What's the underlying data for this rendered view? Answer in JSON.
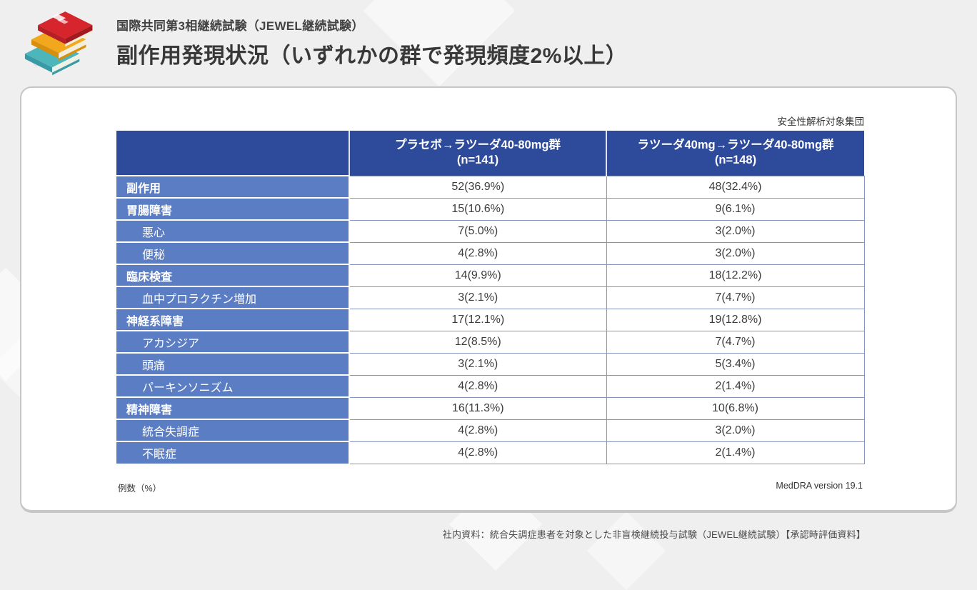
{
  "colors": {
    "page_bg": "#efefef",
    "card_border": "#c6c6c6",
    "header_bg": "#2e4a9b",
    "row_label_bg": "#5b7dc3",
    "data_border": "#8593bd",
    "logo_red": "#d6252c",
    "logo_yellow": "#f2a71c",
    "logo_teal": "#4db6ba"
  },
  "header": {
    "subtitle": "国際共同第3相継続試験（JEWEL継続試験）",
    "title": "副作用発現状況（いずれかの群で発現頻度2%以上）",
    "logo_icon": "books-stack-icon"
  },
  "table": {
    "note_top_right": "安全性解析対象集団",
    "columns": [
      {
        "line1": "プラセボ→ラツーダ40-80mg群",
        "line2": "(n=141)"
      },
      {
        "line1": "ラツーダ40mg→ラツーダ40-80mg群",
        "line2": "(n=148)"
      }
    ],
    "rows": [
      {
        "label": "副作用",
        "bold": true,
        "indent": false,
        "values": [
          "52(36.9%)",
          "48(32.4%)"
        ]
      },
      {
        "label": "胃腸障害",
        "bold": true,
        "indent": false,
        "values": [
          "15(10.6%)",
          "9(6.1%)"
        ]
      },
      {
        "label": "悪心",
        "bold": false,
        "indent": true,
        "values": [
          "7(5.0%)",
          "3(2.0%)"
        ]
      },
      {
        "label": "便秘",
        "bold": false,
        "indent": true,
        "values": [
          "4(2.8%)",
          "3(2.0%)"
        ]
      },
      {
        "label": "臨床検査",
        "bold": true,
        "indent": false,
        "values": [
          "14(9.9%)",
          "18(12.2%)"
        ]
      },
      {
        "label": "血中プロラクチン増加",
        "bold": false,
        "indent": true,
        "values": [
          "3(2.1%)",
          "7(4.7%)"
        ]
      },
      {
        "label": "神経系障害",
        "bold": true,
        "indent": false,
        "values": [
          "17(12.1%)",
          "19(12.8%)"
        ]
      },
      {
        "label": "アカシジア",
        "bold": false,
        "indent": true,
        "values": [
          "12(8.5%)",
          "7(4.7%)"
        ]
      },
      {
        "label": "頭痛",
        "bold": false,
        "indent": true,
        "values": [
          "3(2.1%)",
          "5(3.4%)"
        ]
      },
      {
        "label": "パーキンソニズム",
        "bold": false,
        "indent": true,
        "values": [
          "4(2.8%)",
          "2(1.4%)"
        ]
      },
      {
        "label": "精神障害",
        "bold": true,
        "indent": false,
        "values": [
          "16(11.3%)",
          "10(6.8%)"
        ]
      },
      {
        "label": "統合失調症",
        "bold": false,
        "indent": true,
        "values": [
          "4(2.8%)",
          "3(2.0%)"
        ]
      },
      {
        "label": "不眠症",
        "bold": false,
        "indent": true,
        "values": [
          "4(2.8%)",
          "2(1.4%)"
        ]
      }
    ],
    "footnote_left": "例数（%）",
    "footnote_right": "MedDRA version 19.1"
  },
  "footer": {
    "source": "社内資料：統合失調症患者を対象とした非盲検継続投与試験（JEWEL継続試験）【承認時評価資料】"
  }
}
